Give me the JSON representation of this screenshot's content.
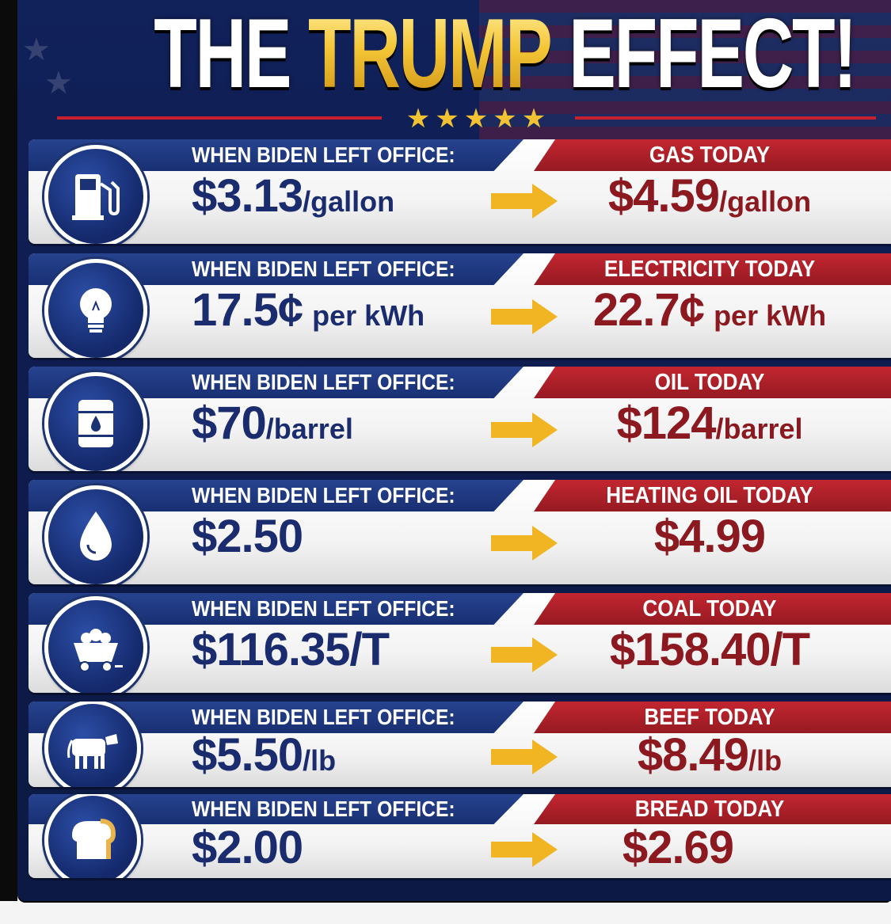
{
  "title": {
    "part1": "THE",
    "part2": "TRUMP",
    "part3": "EFFECT!"
  },
  "divider_stars": "★★★★★",
  "colors": {
    "navy": "#14286a",
    "red": "#b0202a",
    "gold": "#f2c12e",
    "left_value": "#1a2c6e",
    "right_value": "#8c1820"
  },
  "rows": [
    {
      "icon": "gas-pump-icon",
      "left_label": "WHEN BIDEN LEFT OFFICE:",
      "left_amount": "$3.13",
      "left_unit": "/gallon",
      "right_label": "GAS TODAY",
      "right_amount": "$4.59",
      "right_unit": "/gallon"
    },
    {
      "icon": "lightbulb-icon",
      "left_label": "WHEN BIDEN LEFT OFFICE:",
      "left_amount": "17.5¢",
      "left_unit": "per kWh",
      "right_label": "ELECTRICITY TODAY",
      "right_amount": "22.7¢",
      "right_unit": "per kWh"
    },
    {
      "icon": "oil-barrel-icon",
      "left_label": "WHEN BIDEN LEFT OFFICE:",
      "left_amount": "$70",
      "left_unit": "/barrel",
      "right_label": "OIL TODAY",
      "right_amount": "$124",
      "right_unit": "/barrel"
    },
    {
      "icon": "oil-drop-icon",
      "left_label": "WHEN BIDEN LEFT OFFICE:",
      "left_amount": "$2.50",
      "left_unit": "",
      "right_label": "HEATING OIL TODAY",
      "right_amount": "$4.99",
      "right_unit": ""
    },
    {
      "icon": "coal-cart-icon",
      "left_label": "WHEN BIDEN LEFT OFFICE:",
      "left_amount": "$116.35/T",
      "left_unit": "",
      "right_label": "COAL TODAY",
      "right_amount": "$158.40/T",
      "right_unit": ""
    },
    {
      "icon": "cow-icon",
      "left_label": "WHEN BIDEN LEFT OFFICE:",
      "left_amount": "$5.50",
      "left_unit": "/lb",
      "right_label": "BEEF TODAY",
      "right_amount": "$8.49",
      "right_unit": "/lb"
    },
    {
      "icon": "bread-icon",
      "left_label": "WHEN BIDEN LEFT OFFICE:",
      "left_amount": "$2.00",
      "left_unit": "",
      "right_label": "BREAD TODAY",
      "right_amount": "$2.69",
      "right_unit": ""
    }
  ]
}
